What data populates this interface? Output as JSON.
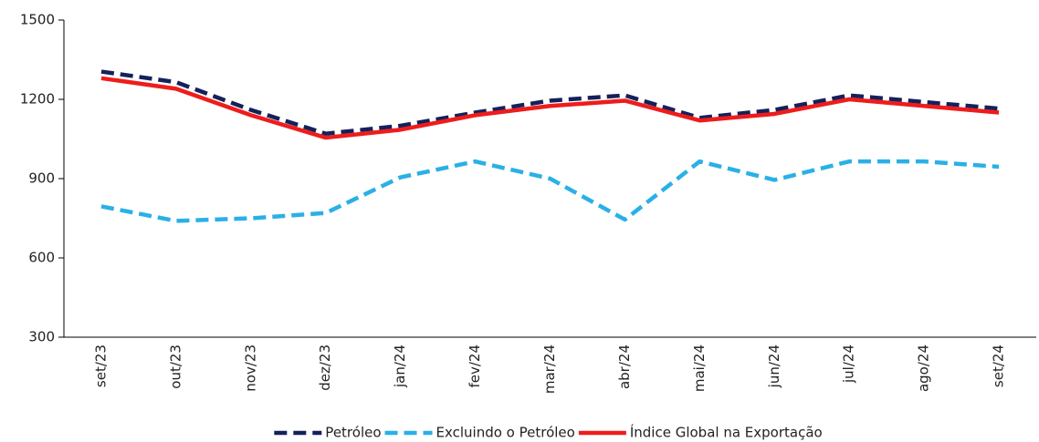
{
  "chart_data": {
    "type": "line",
    "categories": [
      "set/23",
      "out/23",
      "nov/23",
      "dez/23",
      "jan/24",
      "fev/24",
      "mar/24",
      "abr/24",
      "mai/24",
      "jun/24",
      "jul/24",
      "ago/24",
      "set/24"
    ],
    "series": [
      {
        "name": "Petróleo",
        "color": "#14215a",
        "dashed": true,
        "values": [
          1305,
          1265,
          1160,
          1070,
          1100,
          1150,
          1195,
          1215,
          1130,
          1160,
          1215,
          1190,
          1165
        ]
      },
      {
        "name": "Excluindo o Petróleo",
        "color": "#2ab0e6",
        "dashed": true,
        "values": [
          795,
          740,
          750,
          770,
          905,
          965,
          900,
          745,
          965,
          895,
          965,
          965,
          945
        ]
      },
      {
        "name": "Índice Global na Exportação",
        "color": "#ee1c1c",
        "dashed": false,
        "values": [
          1280,
          1240,
          1140,
          1055,
          1085,
          1140,
          1175,
          1195,
          1120,
          1145,
          1200,
          1175,
          1150
        ]
      }
    ],
    "ylim": [
      300,
      1500
    ],
    "yticks": [
      300,
      600,
      900,
      1200,
      1500
    ],
    "grid": false,
    "legend": "bottom"
  }
}
